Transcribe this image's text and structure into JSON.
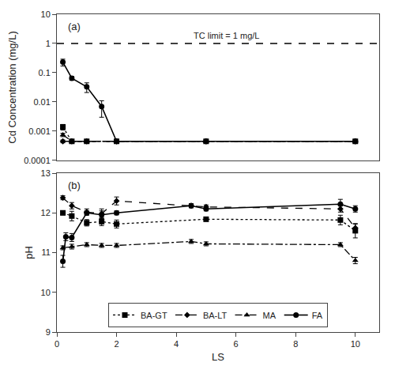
{
  "chart_data": [
    {
      "type": "line",
      "title": "(a)",
      "ylabel": "Cd Concentration (mg/L)",
      "log": "y",
      "xlim": [
        0,
        10.8
      ],
      "ylim": [
        0.0001,
        10
      ],
      "yticks": [
        0.0001,
        0.001,
        0.01,
        0.1,
        1,
        10
      ],
      "grid": false,
      "tick_labels": "y",
      "hline": {
        "value": 1.0,
        "label": "TC limit = 1 mg/L",
        "line_style": "dashed",
        "color": "black"
      },
      "series": [
        {
          "name": "FA",
          "color": "black",
          "marker": "circle",
          "line_style": "solid",
          "x": [
            0.2,
            0.5,
            1.0,
            1.5,
            2.0,
            5.0,
            10.0
          ],
          "values": [
            0.23,
            0.065,
            0.033,
            0.007,
            0.00045,
            0.00045,
            0.00045
          ],
          "error": [
            0.06,
            0.01,
            0.012,
            0.004,
            5e-05,
            5e-05,
            5e-05
          ]
        },
        {
          "name": "BA-GT",
          "color": "black",
          "marker": "square",
          "line_style": "dotted",
          "x": [
            0.2,
            0.5,
            1.0,
            2.0,
            5.0,
            10.0
          ],
          "values": [
            0.0014,
            0.00045,
            0.00045,
            0.00045,
            0.00045,
            0.00045
          ],
          "error": [
            0.0003,
            5e-05,
            5e-05,
            5e-05,
            5e-05,
            5e-05
          ]
        },
        {
          "name": "BA-LT",
          "color": "black",
          "marker": "diamond",
          "line_style": "dashed",
          "x": [
            0.2,
            0.5,
            1.0,
            2.0,
            5.0,
            10.0
          ],
          "values": [
            0.00045,
            0.00045,
            0.00045,
            0.00045,
            0.00045,
            0.00045
          ],
          "error": [
            5e-05,
            5e-05,
            5e-05,
            5e-05,
            5e-05,
            5e-05
          ]
        },
        {
          "name": "MA",
          "color": "black",
          "marker": "triangle",
          "line_style": "dashdot",
          "x": [
            0.2,
            0.5,
            1.0,
            2.0,
            5.0,
            10.0
          ],
          "values": [
            0.00075,
            0.00045,
            0.00045,
            0.00045,
            0.00045,
            0.00045
          ],
          "error": [
            0.0001,
            5e-05,
            5e-05,
            5e-05,
            5e-05,
            5e-05
          ]
        }
      ]
    },
    {
      "type": "line",
      "title": "(b)",
      "xlabel": "LS",
      "ylabel": "pH",
      "xlim": [
        0,
        10.8
      ],
      "xticks": [
        0,
        2,
        4,
        6,
        8,
        10
      ],
      "ylim": [
        9,
        13
      ],
      "yticks": [
        9,
        10,
        11,
        12,
        13
      ],
      "grid": false,
      "legend": "lower center",
      "series": [
        {
          "name": "BA-GT",
          "color": "black",
          "marker": "square",
          "line_style": "dotted",
          "x": [
            0.2,
            0.5,
            1.0,
            1.5,
            2.0,
            5.0,
            9.5,
            10.0
          ],
          "values": [
            12.0,
            11.92,
            11.75,
            11.78,
            11.72,
            11.84,
            11.82,
            11.55
          ],
          "error": [
            0.05,
            0.12,
            0.08,
            0.1,
            0.1,
            0.05,
            0.12,
            0.18
          ]
        },
        {
          "name": "BA-LT",
          "color": "black",
          "marker": "diamond",
          "line_style": "dashed",
          "x": [
            0.2,
            0.5,
            1.0,
            1.5,
            2.0,
            4.5,
            5.0,
            9.5,
            10.0
          ],
          "values": [
            12.38,
            12.18,
            12.02,
            11.98,
            12.3,
            12.18,
            12.15,
            12.1,
            11.62
          ],
          "error": [
            0.05,
            0.08,
            0.08,
            0.12,
            0.1,
            0.05,
            0.05,
            0.08,
            0.1
          ]
        },
        {
          "name": "MA",
          "color": "black",
          "marker": "triangle",
          "line_style": "dashdot",
          "x": [
            0.2,
            0.5,
            1.0,
            1.5,
            2.0,
            4.5,
            5.0,
            9.5,
            10.0
          ],
          "values": [
            11.12,
            11.15,
            11.2,
            11.18,
            11.18,
            11.28,
            11.22,
            11.2,
            10.8
          ],
          "error": [
            0.05,
            0.06,
            0.05,
            0.05,
            0.05,
            0.05,
            0.05,
            0.05,
            0.08
          ]
        },
        {
          "name": "FA",
          "color": "black",
          "marker": "circle",
          "line_style": "solid",
          "x": [
            0.2,
            0.3,
            0.5,
            1.0,
            1.5,
            2.0,
            4.5,
            5.0,
            9.5,
            10.0
          ],
          "values": [
            10.78,
            11.4,
            11.38,
            12.0,
            11.95,
            12.0,
            12.18,
            12.1,
            12.22,
            12.1
          ],
          "error": [
            0.15,
            0.1,
            0.1,
            0.05,
            0.1,
            0.05,
            0.05,
            0.05,
            0.12,
            0.08
          ]
        }
      ]
    }
  ]
}
